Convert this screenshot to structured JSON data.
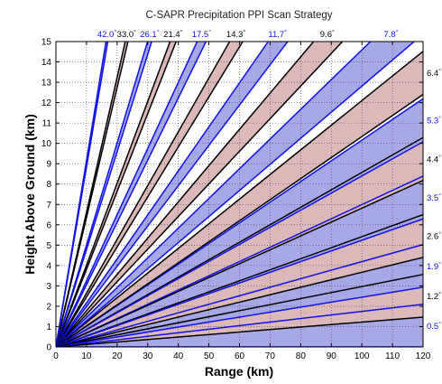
{
  "chart_data": {
    "type": "line",
    "title": "C-SAPR Precipitation PPI Scan Strategy",
    "xlabel": "Range (km)",
    "ylabel": "Height Above Ground (km)",
    "xlim": [
      0,
      120
    ],
    "ylim": [
      0,
      15
    ],
    "xticks": [
      "0",
      "10",
      "20",
      "30",
      "40",
      "50",
      "60",
      "70",
      "80",
      "90",
      "100",
      "110",
      "120"
    ],
    "yticks": [
      "0",
      "1",
      "2",
      "3",
      "4",
      "5",
      "6",
      "7",
      "8",
      "9",
      "10",
      "11",
      "12",
      "13",
      "14",
      "15"
    ],
    "grid": true,
    "beam_width_deg": 1.0,
    "beam_origin_km": 0,
    "colors": {
      "black": "#000000",
      "blue": "#1010e8",
      "blue_fill": "#a7a8e6",
      "pink_fill": "#dcb8b8"
    },
    "series": [
      {
        "angle": 0.5,
        "label": "0.5",
        "color": "blue",
        "fill": "blue_fill",
        "label_side": "right"
      },
      {
        "angle": 1.2,
        "label": "1.2",
        "color": "black",
        "fill": "pink_fill",
        "label_side": "right"
      },
      {
        "angle": 1.9,
        "label": "1.9",
        "color": "blue",
        "fill": "blue_fill",
        "label_side": "right"
      },
      {
        "angle": 2.6,
        "label": "2.6",
        "color": "black",
        "fill": "pink_fill",
        "label_side": "right"
      },
      {
        "angle": 3.5,
        "label": "3.5",
        "color": "blue",
        "fill": "blue_fill",
        "label_side": "right"
      },
      {
        "angle": 4.4,
        "label": "4.4",
        "color": "black",
        "fill": "pink_fill",
        "label_side": "right"
      },
      {
        "angle": 5.3,
        "label": "5.3",
        "color": "blue",
        "fill": "blue_fill",
        "label_side": "right"
      },
      {
        "angle": 6.4,
        "label": "6.4",
        "color": "black",
        "fill": "pink_fill",
        "label_side": "right"
      },
      {
        "angle": 7.8,
        "label": "7.8",
        "color": "blue",
        "fill": "blue_fill",
        "label_side": "top"
      },
      {
        "angle": 9.6,
        "label": "9.6",
        "color": "black",
        "fill": "pink_fill",
        "label_side": "top"
      },
      {
        "angle": 11.7,
        "label": "11.7",
        "color": "blue",
        "fill": "blue_fill",
        "label_side": "top"
      },
      {
        "angle": 14.3,
        "label": "14.3",
        "color": "black",
        "fill": "pink_fill",
        "label_side": "top"
      },
      {
        "angle": 17.5,
        "label": "17.5",
        "color": "blue",
        "fill": "blue_fill",
        "label_side": "top"
      },
      {
        "angle": 21.4,
        "label": "21.4",
        "color": "black",
        "fill": "pink_fill",
        "label_side": "top"
      },
      {
        "angle": 26.1,
        "label": "26.1",
        "color": "blue",
        "fill": "blue_fill",
        "label_side": "top"
      },
      {
        "angle": 33.0,
        "label": "33.0",
        "color": "black",
        "fill": "pink_fill",
        "label_side": "top"
      },
      {
        "angle": 42.0,
        "label": "42.0",
        "color": "blue",
        "fill": "blue_fill",
        "label_side": "top"
      }
    ]
  }
}
